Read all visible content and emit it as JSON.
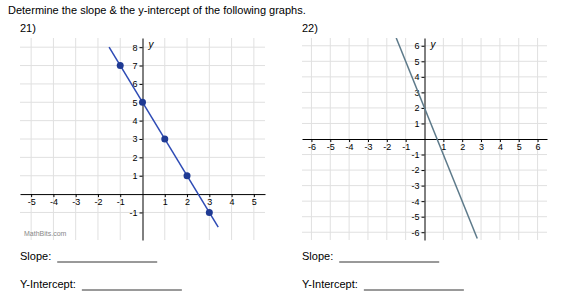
{
  "title": "Determine the slope & the y-intercept of the following graphs.",
  "chart_data": [
    {
      "type": "line",
      "title": "21)",
      "y_label": "y",
      "xlim": [
        -5.5,
        5.5
      ],
      "ylim": [
        -2.5,
        8.5
      ],
      "xticks": [
        -5,
        -4,
        -3,
        -2,
        -1,
        1,
        2,
        3,
        4,
        5
      ],
      "yticks": [
        -1,
        1,
        2,
        3,
        4,
        5,
        6,
        7,
        8
      ],
      "grid": true,
      "series": [
        {
          "type": "line",
          "x": [
            -1.5,
            3.4
          ],
          "values": [
            8.0,
            -1.8
          ],
          "color": "#2e4bb5"
        },
        {
          "type": "scatter",
          "x": [
            -1,
            0,
            1,
            2,
            3
          ],
          "values": [
            7,
            5,
            3,
            1,
            -1
          ],
          "color": "#1f3a93",
          "marker": "circle"
        }
      ],
      "annotations": [
        "Slope:",
        "Y-Intercept:",
        "MathBits.com"
      ]
    },
    {
      "type": "line",
      "title": "22)",
      "y_label": "y",
      "xlim": [
        -6.5,
        6.5
      ],
      "ylim": [
        -6.5,
        6.5
      ],
      "xticks": [
        -6,
        -5,
        -4,
        -3,
        -2,
        -1,
        1,
        2,
        3,
        4,
        5,
        6
      ],
      "yticks": [
        -6,
        -5,
        -4,
        -3,
        -2,
        -1,
        1,
        2,
        3,
        4,
        5,
        6
      ],
      "grid": true,
      "series": [
        {
          "type": "line",
          "x": [
            -1.5,
            2.8
          ],
          "values": [
            6.5,
            -6.4
          ],
          "color": "#5d7a8a"
        }
      ],
      "annotations": [
        "Slope:",
        "Y-Intercept:"
      ]
    }
  ]
}
